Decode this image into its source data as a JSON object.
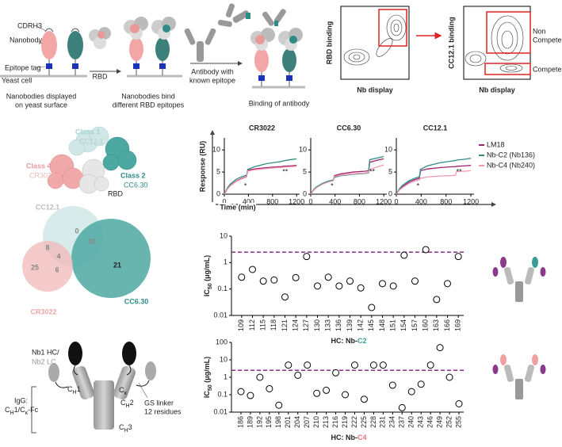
{
  "panel_a": {
    "cdrh3": "CDRH3",
    "nanobody": "Nanobody",
    "epitope_tag": "Epitope tag",
    "yeast_cell": "Yeast cell",
    "caption_1": [
      "Nanobodies displayed",
      "on yeast surface"
    ],
    "rbd": "RBD",
    "caption_2": [
      "Nanobodies bind",
      "different RBD epitopes"
    ],
    "antibody": [
      "Antibody with",
      "known epitope"
    ],
    "caption_3": "Binding of antibody"
  },
  "facs": {
    "plot_1": {
      "y_label": "RBD binding",
      "x_label": "Nb display"
    },
    "plot_2": {
      "y_label": "CC12.1 binding",
      "x_label": "Nb display",
      "gate_1": [
        "Non",
        "Compete"
      ],
      "gate_2": "Compete"
    }
  },
  "panel_b": {
    "class_1": "Class 1",
    "class_1_ab": "CC12.1",
    "class_4": "Class 4",
    "class_4_ab": "CR3022",
    "rbd": "RBD",
    "class_2": "Class 2",
    "class_2_ab": "CC6.30"
  },
  "panel_d": {
    "sets": [
      "CC12.1",
      "CR3022",
      "CC6.30"
    ],
    "regions": {
      "only_cc121": 0,
      "cc121_cc630": 42,
      "cc121_cr3022": 8,
      "all": 4,
      "only_cr3022": 25,
      "cr3022_cc630": 6,
      "only_cc630": 21
    }
  },
  "panel_f": {
    "nb_hc": "Nb1 HC/",
    "nb_lc": "Nb2 LC",
    "igg": "IgG:",
    "igg_format": [
      "C",
      "H",
      "1/C",
      "κ",
      "-Fc"
    ],
    "ch1": [
      "C",
      "H",
      "1"
    ],
    "ck": [
      "C",
      "κ"
    ],
    "ch2": [
      "C",
      "H",
      "2"
    ],
    "ch3": [
      "C",
      "H",
      "3"
    ],
    "gs_linker": [
      "GS linker",
      "12 residues"
    ]
  },
  "chart_data": [
    {
      "type": "line",
      "title": "CR3022",
      "y_label": "Response (RU)",
      "x_label": "Time (min)",
      "x": [
        0,
        50,
        100,
        200,
        300,
        370,
        390,
        500,
        700,
        900,
        950,
        970,
        1100,
        1200
      ],
      "xlim": [
        0,
        1250
      ],
      "xticks": [
        0,
        400,
        800,
        1200
      ],
      "ylim": [
        0,
        12
      ],
      "yticks": [
        0,
        5,
        10
      ],
      "annotations": [
        "*",
        "**"
      ],
      "series": [
        {
          "name": "LM18",
          "color": "#a0216f",
          "values": [
            0,
            1.2,
            2,
            3,
            3.6,
            4,
            5.4,
            5.7,
            6.0,
            6.2,
            6.2,
            6.3,
            6.4,
            6.5
          ]
        },
        {
          "name": "Nb-C2 (Nb136)",
          "color": "#2e8b86",
          "values": [
            0,
            1.4,
            2.3,
            3.4,
            4,
            4.3,
            5.6,
            6.2,
            6.9,
            7.3,
            7.4,
            7.5,
            7.8,
            8
          ]
        },
        {
          "name": "Nb-C4 (Nb240)",
          "color": "#f09ab0",
          "values": [
            0,
            1.1,
            1.9,
            2.9,
            3.5,
            3.9,
            5.2,
            5.5,
            5.8,
            6,
            6,
            6.1,
            6.2,
            6.3
          ]
        }
      ]
    },
    {
      "type": "line",
      "title": "CC6.30",
      "x": [
        0,
        50,
        100,
        200,
        300,
        370,
        390,
        500,
        700,
        900,
        950,
        970,
        1100,
        1200
      ],
      "xlim": [
        0,
        1250
      ],
      "xticks": [
        0,
        400,
        800,
        1200
      ],
      "ylim": [
        0,
        12
      ],
      "yticks": [
        0,
        5,
        10
      ],
      "annotations": [
        "*",
        "**"
      ],
      "series": [
        {
          "color": "#a0216f",
          "values": [
            0,
            1,
            1.6,
            2.4,
            2.9,
            3.1,
            4.2,
            4.6,
            5,
            5.2,
            5.3,
            7.2,
            7.7,
            8
          ]
        },
        {
          "color": "#2e8b86",
          "values": [
            0,
            1.1,
            1.7,
            2.5,
            3,
            3.2,
            3.8,
            4.2,
            4.5,
            4.7,
            4.8,
            7.8,
            8.2,
            8.5
          ]
        },
        {
          "color": "#f09ab0",
          "values": [
            0,
            0.9,
            1.5,
            2.3,
            2.8,
            3,
            4.0,
            4.3,
            4.6,
            4.8,
            4.9,
            5.6,
            6.2,
            6.6
          ]
        }
      ]
    },
    {
      "type": "line",
      "title": "CC12.1",
      "x": [
        0,
        50,
        100,
        200,
        300,
        370,
        390,
        500,
        700,
        900,
        950,
        970,
        1100,
        1200
      ],
      "xlim": [
        0,
        1250
      ],
      "xticks": [
        0,
        400,
        800,
        1200
      ],
      "ylim": [
        0,
        12
      ],
      "yticks": [
        0,
        5,
        10
      ],
      "annotations": [
        "*",
        "**"
      ],
      "series": [
        {
          "color": "#a0216f",
          "values": [
            0,
            1,
            1.7,
            2.7,
            3.3,
            3.6,
            5.3,
            5.7,
            6.0,
            6.2,
            6.2,
            6.3,
            6.4,
            6.5
          ]
        },
        {
          "color": "#2e8b86",
          "values": [
            0,
            1.2,
            2,
            3,
            3.6,
            3.9,
            5.6,
            6.4,
            7.1,
            7.5,
            7.6,
            7.7,
            7.9,
            8.1
          ]
        },
        {
          "color": "#f09ab0",
          "values": [
            0,
            0.9,
            1.5,
            2.4,
            3,
            3.2,
            3.6,
            3.9,
            4.1,
            4.2,
            4.3,
            5.1,
            5.2,
            5.3
          ]
        }
      ]
    },
    {
      "type": "scatter",
      "y_label": [
        "IC",
        "50",
        " (μg/mL)"
      ],
      "x_label": [
        "HC: Nb-",
        "C2"
      ],
      "highlight_color": "#3a9c96",
      "categories": [
        "109",
        "112",
        "115",
        "118",
        "121",
        "124",
        "127",
        "130",
        "133",
        "136",
        "139",
        "142",
        "145",
        "148",
        "151",
        "154",
        "157",
        "160",
        "163",
        "166",
        "169"
      ],
      "values": [
        0.28,
        0.55,
        0.2,
        0.22,
        0.05,
        0.27,
        1.7,
        0.13,
        0.28,
        0.13,
        0.2,
        0.11,
        0.02,
        0.16,
        0.13,
        1.9,
        0.2,
        3.1,
        0.04,
        0.16,
        1.7
      ],
      "log_scale": true,
      "ylim": [
        0.01,
        10
      ],
      "yticks": [
        0.01,
        0.1,
        1,
        10
      ],
      "reference_line": 2.5,
      "reference_color": "#8b2a8b"
    },
    {
      "type": "scatter",
      "y_label": [
        "IC",
        "50",
        " (μg/mL)"
      ],
      "x_label": [
        "HC: Nb-",
        "C4"
      ],
      "highlight_color": "#e8737f",
      "categories": [
        "186",
        "189",
        "192",
        "195",
        "198",
        "201",
        "204",
        "207",
        "210",
        "213",
        "216",
        "219",
        "222",
        "225",
        "228",
        "231",
        "234",
        "237",
        "240",
        "243",
        "246",
        "249",
        "252",
        "255"
      ],
      "values": [
        0.15,
        0.09,
        1.0,
        0.22,
        0.025,
        5,
        1.3,
        5,
        0.12,
        0.18,
        1.8,
        0.1,
        5,
        0.055,
        5,
        5,
        0.35,
        0.018,
        0.15,
        0.4,
        5,
        50,
        1.0,
        0.03
      ],
      "log_scale": true,
      "ylim": [
        0.01,
        100
      ],
      "yticks": [
        0.01,
        0.1,
        1,
        10,
        100
      ],
      "reference_line": 2.5,
      "reference_color": "#8b2a8b"
    }
  ]
}
